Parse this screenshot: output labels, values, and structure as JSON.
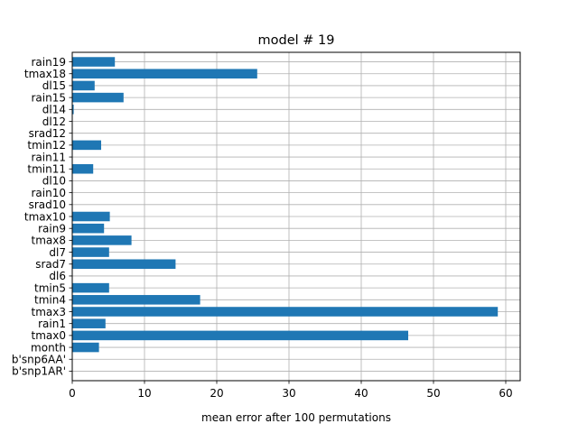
{
  "chart_data": {
    "type": "bar",
    "orientation": "horizontal",
    "title": "model # 19",
    "xlabel": "mean error after 100 permutations",
    "ylabel": "",
    "xlim": [
      0,
      62
    ],
    "xticks": [
      0,
      10,
      20,
      30,
      40,
      50,
      60
    ],
    "grid": true,
    "bar_color": "#1f77b4",
    "categories": [
      "b'snp1AR'",
      "b'snp6AA'",
      "month",
      "tmax0",
      "rain1",
      "tmax3",
      "tmin4",
      "tmin5",
      "dl6",
      "srad7",
      "dl7",
      "tmax8",
      "rain9",
      "tmax10",
      "srad10",
      "rain10",
      "dl10",
      "tmin11",
      "rain11",
      "tmin12",
      "srad12",
      "dl12",
      "dl14",
      "rain15",
      "dl15",
      "tmax18",
      "rain19"
    ],
    "values": [
      0,
      0,
      3.7,
      46.5,
      4.6,
      58.9,
      17.7,
      5.1,
      0,
      14.3,
      5.1,
      8.2,
      4.4,
      5.2,
      0,
      0,
      0,
      2.9,
      0,
      4.0,
      0,
      0,
      0.2,
      7.1,
      3.1,
      25.6,
      5.9
    ]
  }
}
